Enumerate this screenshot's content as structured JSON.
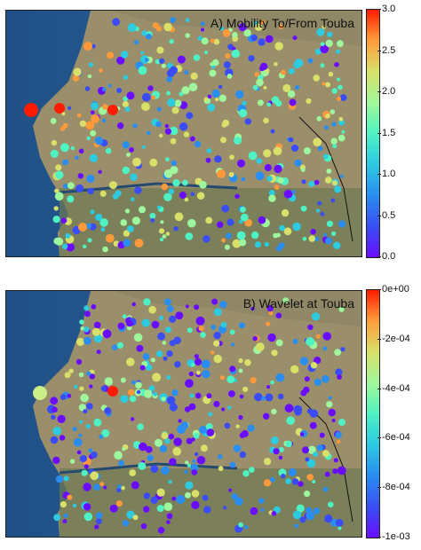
{
  "panel_a": {
    "title": "A) Mobility To/From Touba",
    "colorbar_ticks": [
      "3.0",
      "2.5",
      "2.0",
      "1.5",
      "1.0",
      "0.5",
      "0.0"
    ],
    "colorbar_range": [
      0.0,
      3.0
    ]
  },
  "panel_b": {
    "title": "B) Wavelet at Touba",
    "colorbar_ticks": [
      "0e+00",
      "-2e-04",
      "-4e-04",
      "-6e-04",
      "-8e-04",
      "-1e-03"
    ],
    "colorbar_range": [
      -0.001,
      0.0
    ]
  },
  "colors": {
    "ocean": "#2a5a8a",
    "land": "#9a8f6e",
    "colormap": "rainbow"
  }
}
